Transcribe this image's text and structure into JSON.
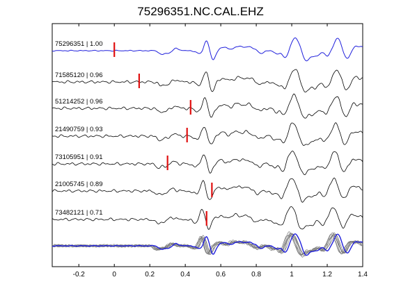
{
  "chart_data": {
    "type": "line",
    "title": "75296351.NC.CAL.EHZ",
    "xlabel": "",
    "ylabel": "",
    "xlim": [
      -0.35,
      1.4
    ],
    "x_ticks": [
      "-0.2",
      "0",
      "0.2",
      "0.4",
      "0.6",
      "0.8",
      "1",
      "1.2",
      "1.4"
    ],
    "x_tick_values": [
      -0.2,
      0,
      0.2,
      0.4,
      0.6,
      0.8,
      1.0,
      1.2,
      1.4
    ],
    "y_ticks": [],
    "grid": false,
    "reference_color": "#1f1fdc",
    "trace_color": "#000000",
    "pick_color": "#e01010",
    "stack_color": "#7a7a7a",
    "series": [
      {
        "name": "75296351 | 1.00",
        "pick_time": 0.0,
        "reference": true
      },
      {
        "name": "71585120 | 0.96",
        "pick_time": 0.14
      },
      {
        "name": "51214252 | 0.96",
        "pick_time": 0.43
      },
      {
        "name": "21490759 | 0.93",
        "pick_time": 0.41
      },
      {
        "name": "73105951 | 0.91",
        "pick_time": 0.3
      },
      {
        "name": "21005745 | 0.89",
        "pick_time": 0.55
      },
      {
        "name": "73482121 | 0.71",
        "pick_time": 0.52
      }
    ],
    "stack": {
      "n_overlaid": 7
    }
  }
}
